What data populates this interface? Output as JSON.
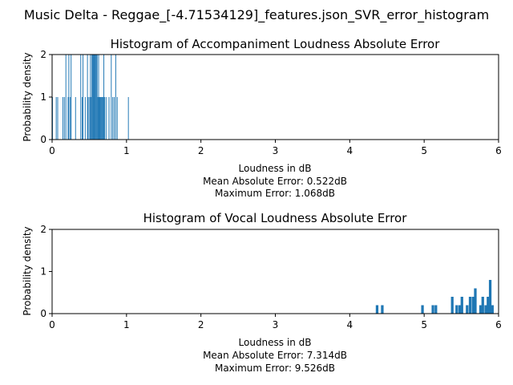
{
  "figure": {
    "suptitle": "Music Delta - Reggae_[-4.71534129]_features.json_SVR_error_histogram"
  },
  "colors": {
    "bar": "#1f77b4",
    "axis": "#000000",
    "background": "#ffffff"
  },
  "chart_data": [
    {
      "type": "bar",
      "title": "Histogram of Accompaniment Loudness Absolute Error",
      "xlabel": "Loudness in dB",
      "ylabel": "Probability density",
      "xlim": [
        0,
        6
      ],
      "ylim": [
        0,
        2
      ],
      "xticks": [
        0,
        1,
        2,
        3,
        4,
        5,
        6
      ],
      "yticks": [
        0,
        1,
        2
      ],
      "grid": false,
      "annotations": [
        "Mean Absolute Error: 0.522dB",
        "Maximum Error: 1.068dB"
      ],
      "bins": [
        {
          "x": 0.0,
          "w": 0.0105,
          "h": 1
        },
        {
          "x": 0.05,
          "w": 0.0105,
          "h": 1
        },
        {
          "x": 0.07,
          "w": 0.0105,
          "h": 1
        },
        {
          "x": 0.14,
          "w": 0.0105,
          "h": 1
        },
        {
          "x": 0.16,
          "w": 0.0105,
          "h": 1
        },
        {
          "x": 0.18,
          "w": 0.0105,
          "h": 2
        },
        {
          "x": 0.21,
          "w": 0.0105,
          "h": 1
        },
        {
          "x": 0.22,
          "w": 0.0105,
          "h": 2
        },
        {
          "x": 0.24,
          "w": 0.0105,
          "h": 1
        },
        {
          "x": 0.25,
          "w": 0.0105,
          "h": 2
        },
        {
          "x": 0.31,
          "w": 0.0105,
          "h": 1
        },
        {
          "x": 0.38,
          "w": 0.0105,
          "h": 2
        },
        {
          "x": 0.4,
          "w": 0.0105,
          "h": 1
        },
        {
          "x": 0.41,
          "w": 0.0105,
          "h": 2
        },
        {
          "x": 0.44,
          "w": 0.0105,
          "h": 1
        },
        {
          "x": 0.47,
          "w": 0.0105,
          "h": 2
        },
        {
          "x": 0.48,
          "w": 0.0105,
          "h": 1
        },
        {
          "x": 0.5,
          "w": 0.0105,
          "h": 1
        },
        {
          "x": 0.51,
          "w": 0.0105,
          "h": 2
        },
        {
          "x": 0.52,
          "w": 0.0105,
          "h": 1
        },
        {
          "x": 0.53,
          "w": 0.0105,
          "h": 2
        },
        {
          "x": 0.54,
          "w": 0.0105,
          "h": 2
        },
        {
          "x": 0.55,
          "w": 0.0105,
          "h": 2
        },
        {
          "x": 0.56,
          "w": 0.0105,
          "h": 2
        },
        {
          "x": 0.57,
          "w": 0.0105,
          "h": 2
        },
        {
          "x": 0.58,
          "w": 0.0105,
          "h": 2
        },
        {
          "x": 0.59,
          "w": 0.0105,
          "h": 2
        },
        {
          "x": 0.6,
          "w": 0.0105,
          "h": 2
        },
        {
          "x": 0.61,
          "w": 0.0105,
          "h": 1
        },
        {
          "x": 0.62,
          "w": 0.0105,
          "h": 2
        },
        {
          "x": 0.63,
          "w": 0.0105,
          "h": 1
        },
        {
          "x": 0.64,
          "w": 0.0105,
          "h": 1
        },
        {
          "x": 0.65,
          "w": 0.0105,
          "h": 1
        },
        {
          "x": 0.66,
          "w": 0.0105,
          "h": 1
        },
        {
          "x": 0.67,
          "w": 0.0105,
          "h": 1
        },
        {
          "x": 0.68,
          "w": 0.0105,
          "h": 1
        },
        {
          "x": 0.69,
          "w": 0.0105,
          "h": 2
        },
        {
          "x": 0.7,
          "w": 0.0105,
          "h": 1
        },
        {
          "x": 0.72,
          "w": 0.0105,
          "h": 1
        },
        {
          "x": 0.76,
          "w": 0.0105,
          "h": 1
        },
        {
          "x": 0.79,
          "w": 0.0105,
          "h": 2
        },
        {
          "x": 0.81,
          "w": 0.0105,
          "h": 1
        },
        {
          "x": 0.83,
          "w": 0.0105,
          "h": 1
        },
        {
          "x": 0.85,
          "w": 0.0105,
          "h": 2
        },
        {
          "x": 0.87,
          "w": 0.0105,
          "h": 1
        },
        {
          "x": 1.02,
          "w": 0.0105,
          "h": 1
        }
      ]
    },
    {
      "type": "bar",
      "title": "Histogram of Vocal Loudness Absolute Error",
      "xlabel": "Loudness in dB",
      "ylabel": "Probability density",
      "xlim": [
        0,
        6
      ],
      "ylim": [
        0,
        2
      ],
      "xticks": [
        0,
        1,
        2,
        3,
        4,
        5,
        6
      ],
      "yticks": [
        0,
        1,
        2
      ],
      "grid": false,
      "annotations": [
        "Mean Absolute Error: 7.314dB",
        "Maximum Error: 9.526dB"
      ],
      "bins": [
        {
          "x": 4.35,
          "w": 0.035,
          "h": 0.2
        },
        {
          "x": 4.42,
          "w": 0.035,
          "h": 0.2
        },
        {
          "x": 4.96,
          "w": 0.035,
          "h": 0.2
        },
        {
          "x": 5.1,
          "w": 0.035,
          "h": 0.2
        },
        {
          "x": 5.14,
          "w": 0.035,
          "h": 0.2
        },
        {
          "x": 5.36,
          "w": 0.035,
          "h": 0.4
        },
        {
          "x": 5.42,
          "w": 0.035,
          "h": 0.2
        },
        {
          "x": 5.46,
          "w": 0.035,
          "h": 0.2
        },
        {
          "x": 5.49,
          "w": 0.035,
          "h": 0.4
        },
        {
          "x": 5.56,
          "w": 0.035,
          "h": 0.2
        },
        {
          "x": 5.6,
          "w": 0.035,
          "h": 0.4
        },
        {
          "x": 5.64,
          "w": 0.035,
          "h": 0.4
        },
        {
          "x": 5.67,
          "w": 0.035,
          "h": 0.6
        },
        {
          "x": 5.74,
          "w": 0.035,
          "h": 0.2
        },
        {
          "x": 5.77,
          "w": 0.035,
          "h": 0.4
        },
        {
          "x": 5.81,
          "w": 0.035,
          "h": 0.2
        },
        {
          "x": 5.84,
          "w": 0.035,
          "h": 0.4
        },
        {
          "x": 5.87,
          "w": 0.035,
          "h": 0.8
        },
        {
          "x": 5.9,
          "w": 0.035,
          "h": 0.2
        }
      ]
    }
  ]
}
